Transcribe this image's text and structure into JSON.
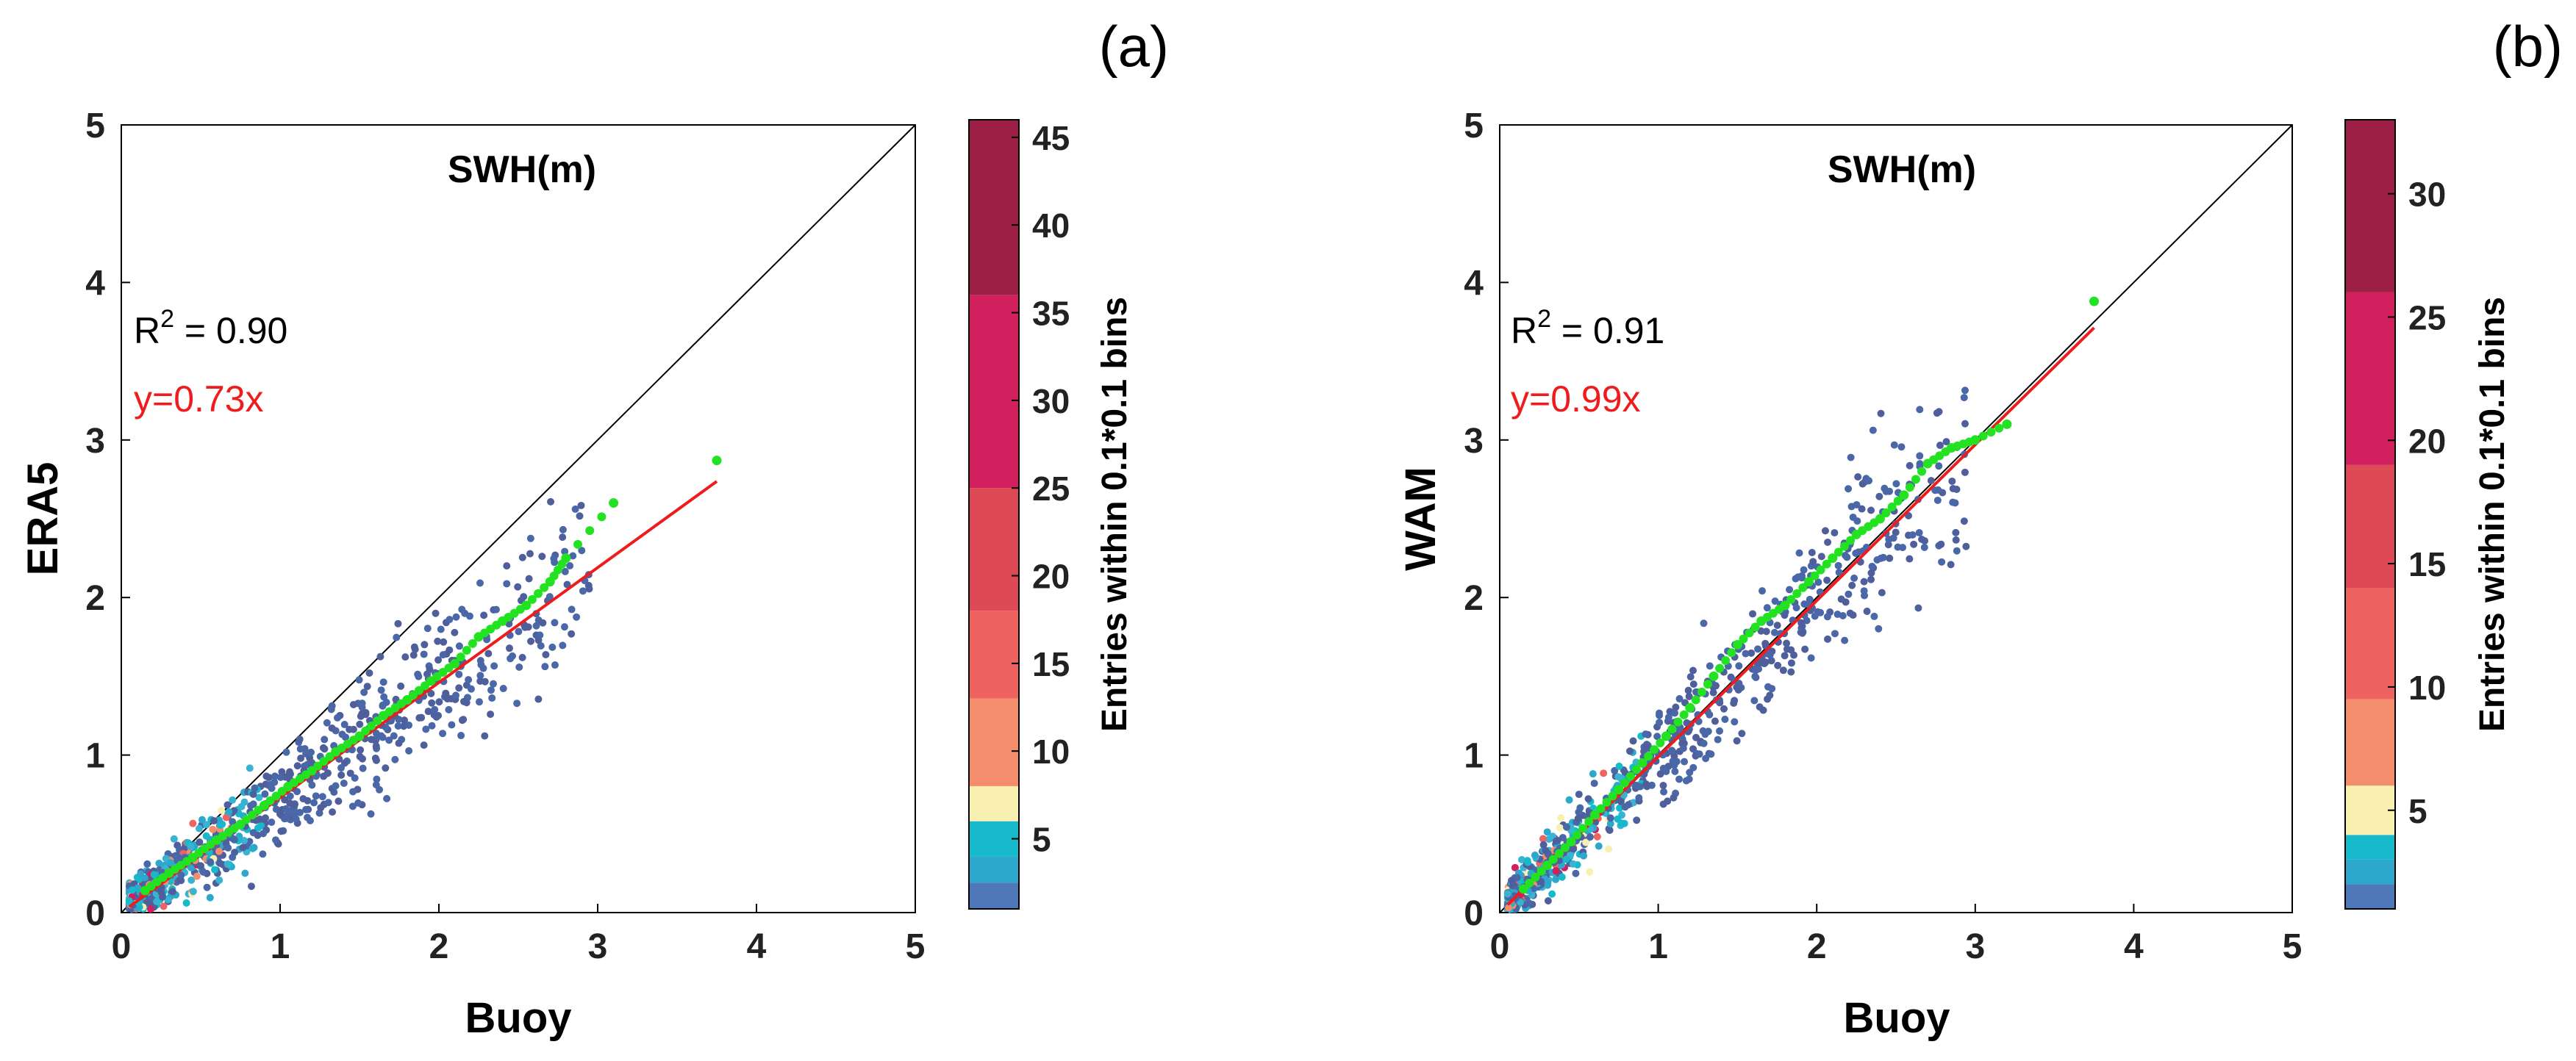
{
  "chart_data": [
    {
      "panel_label": "(a)",
      "type": "scatter",
      "title": "SWH(m)",
      "xlabel": "Buoy",
      "ylabel": "ERA5",
      "xlim": [
        0,
        5
      ],
      "ylim": [
        0,
        5
      ],
      "xticks": [
        "0",
        "1",
        "2",
        "3",
        "4",
        "5"
      ],
      "yticks": [
        "0",
        "1",
        "2",
        "3",
        "4",
        "5"
      ],
      "r2_label": "R",
      "r2_sup": "2",
      "r2_value": " = 0.90",
      "fit_label": "y=0.73x",
      "fit_slope": 0.73,
      "fit_range": [
        0.05,
        3.75
      ],
      "colorbar": {
        "label": "Entries within 0.1*0.1 bins",
        "min": 1,
        "max": 46,
        "ticks": [
          "5",
          "10",
          "15",
          "20",
          "25",
          "30",
          "35",
          "40",
          "45"
        ],
        "bands": [
          {
            "from": 1,
            "to": 2.5,
            "color": "#4f78b9"
          },
          {
            "from": 2.5,
            "to": 4,
            "color": "#2ea7cc"
          },
          {
            "from": 4,
            "to": 6,
            "color": "#16bacb"
          },
          {
            "from": 6,
            "to": 8,
            "color": "#f9efb0"
          },
          {
            "from": 8,
            "to": 13,
            "color": "#f38d6c"
          },
          {
            "from": 13,
            "to": 18,
            "color": "#ef6262"
          },
          {
            "from": 18,
            "to": 25,
            "color": "#dd4a55"
          },
          {
            "from": 25,
            "to": 36,
            "color": "#d21f5e"
          },
          {
            "from": 36,
            "to": 46,
            "color": "#9e1f45"
          }
        ]
      },
      "series": [
        {
          "name": "binned-mean",
          "color": "#22e222",
          "x": [
            0.15,
            0.3,
            0.45,
            0.6,
            0.75,
            0.9,
            1.05,
            1.2,
            1.35,
            1.5,
            1.65,
            1.8,
            1.95,
            2.1,
            2.25,
            2.4,
            2.55,
            2.7,
            2.8,
            3.1,
            3.75
          ],
          "y": [
            0.14,
            0.25,
            0.35,
            0.46,
            0.56,
            0.68,
            0.8,
            0.9,
            1.02,
            1.12,
            1.25,
            1.35,
            1.47,
            1.58,
            1.75,
            1.85,
            1.95,
            2.1,
            2.25,
            2.6,
            2.87
          ]
        }
      ]
    },
    {
      "panel_label": "(b)",
      "type": "scatter",
      "title": "SWH(m)",
      "xlabel": "Buoy",
      "ylabel": "WAM",
      "xlim": [
        0,
        5
      ],
      "ylim": [
        0,
        5
      ],
      "xticks": [
        "0",
        "1",
        "2",
        "3",
        "4",
        "5"
      ],
      "yticks": [
        "0",
        "1",
        "2",
        "3",
        "4",
        "5"
      ],
      "r2_label": "R",
      "r2_sup": "2",
      "r2_value": " = 0.91",
      "fit_label": "y=0.99x",
      "fit_slope": 0.99,
      "fit_range": [
        0.05,
        3.75
      ],
      "colorbar": {
        "label": "Entries within 0.1*0.1 bins",
        "min": 1,
        "max": 33,
        "ticks": [
          "5",
          "10",
          "15",
          "20",
          "25",
          "30"
        ],
        "bands": [
          {
            "from": 1,
            "to": 2,
            "color": "#4f78b9"
          },
          {
            "from": 2,
            "to": 3,
            "color": "#2ea7cc"
          },
          {
            "from": 3,
            "to": 4,
            "color": "#16bacb"
          },
          {
            "from": 4,
            "to": 6,
            "color": "#f9efb0"
          },
          {
            "from": 6,
            "to": 9.5,
            "color": "#f38d6c"
          },
          {
            "from": 9.5,
            "to": 14,
            "color": "#ef6262"
          },
          {
            "from": 14,
            "to": 19,
            "color": "#dd4a55"
          },
          {
            "from": 19,
            "to": 26,
            "color": "#d21f5e"
          },
          {
            "from": 26,
            "to": 33,
            "color": "#9e1f45"
          }
        ]
      },
      "series": [
        {
          "name": "binned-mean",
          "color": "#22e222",
          "x": [
            0.15,
            0.3,
            0.45,
            0.6,
            0.75,
            0.9,
            1.05,
            1.2,
            1.35,
            1.5,
            1.65,
            1.8,
            1.95,
            2.1,
            2.25,
            2.4,
            2.55,
            2.7,
            2.85,
            3.0,
            3.2,
            3.75
          ],
          "y": [
            0.15,
            0.3,
            0.45,
            0.62,
            0.78,
            0.95,
            1.12,
            1.3,
            1.5,
            1.7,
            1.85,
            1.95,
            2.1,
            2.25,
            2.4,
            2.5,
            2.65,
            2.85,
            2.95,
            3.0,
            3.1,
            3.88
          ]
        }
      ]
    }
  ]
}
